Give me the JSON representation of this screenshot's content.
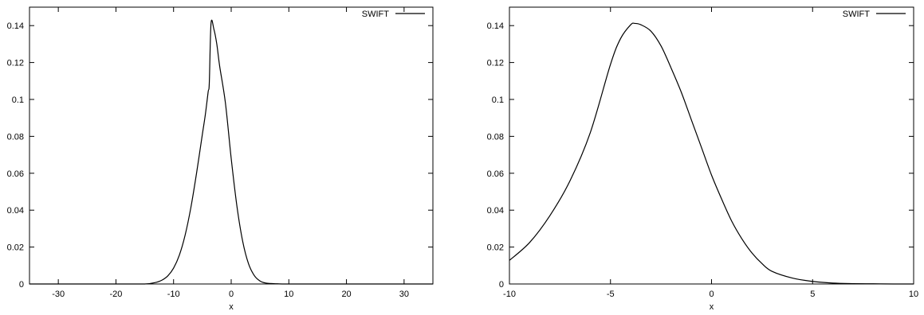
{
  "chart_data": [
    {
      "type": "line",
      "title": "",
      "xlabel": "x",
      "ylabel": "",
      "xlim": [
        -35,
        35
      ],
      "ylim": [
        0,
        0.15
      ],
      "xticks": [
        -30,
        -20,
        -10,
        0,
        10,
        20,
        30
      ],
      "xtick_labels": [
        "-30",
        "-20",
        "-10",
        "0",
        "10",
        "20",
        "30"
      ],
      "yticks": [
        0,
        0.02,
        0.04,
        0.06,
        0.08,
        0.1,
        0.12,
        0.14
      ],
      "ytick_labels": [
        "0",
        "0.02",
        "0.04",
        "0.06",
        "0.08",
        "0.1",
        "0.12",
        "0.14"
      ],
      "grid": false,
      "legend": "top-right",
      "series": [
        {
          "name": "SWIFT",
          "color": "#000000",
          "x": [
            -35,
            -20,
            -15,
            -13,
            -12,
            -11,
            -10,
            -9,
            -8,
            -7,
            -6,
            -5,
            -4.5,
            -4,
            -3.8,
            -3.5,
            -3,
            -2.5,
            -2,
            -1,
            0,
            1,
            2,
            3,
            4,
            5,
            6,
            8,
            10,
            20,
            35
          ],
          "y": [
            0,
            0,
            0,
            0.0009,
            0.0021,
            0.0044,
            0.0086,
            0.0156,
            0.0264,
            0.0414,
            0.0603,
            0.0812,
            0.0915,
            0.1041,
            0.109,
            0.1412,
            0.138,
            0.13,
            0.118,
            0.098,
            0.068,
            0.042,
            0.023,
            0.011,
            0.0046,
            0.0016,
            0.0005,
            0.0001,
            0,
            0,
            0
          ]
        }
      ]
    },
    {
      "type": "line",
      "title": "",
      "xlabel": "x",
      "ylabel": "",
      "xlim": [
        -10,
        10
      ],
      "ylim": [
        0,
        0.15
      ],
      "xticks": [
        -10,
        -5,
        0,
        5,
        10
      ],
      "xtick_labels": [
        "-10",
        "-5",
        "0",
        "5",
        "10"
      ],
      "yticks": [
        0,
        0.02,
        0.04,
        0.06,
        0.08,
        0.1,
        0.12,
        0.14
      ],
      "ytick_labels": [
        "0",
        "0.02",
        "0.04",
        "0.06",
        "0.08",
        "0.1",
        "0.12",
        "0.14"
      ],
      "grid": false,
      "legend": "top-right",
      "series": [
        {
          "name": "SWIFT",
          "color": "#000000",
          "x": [
            -10,
            -9,
            -8,
            -7,
            -6,
            -5,
            -4.5,
            -4,
            -3.8,
            -3.5,
            -3,
            -2.5,
            -2,
            -1.5,
            -1,
            -0.5,
            0,
            0.5,
            1,
            1.5,
            2,
            2.5,
            3,
            4,
            5,
            6,
            7,
            8,
            9,
            10
          ],
          "y": [
            0.0128,
            0.0225,
            0.037,
            0.056,
            0.082,
            0.119,
            0.133,
            0.1405,
            0.1412,
            0.1405,
            0.137,
            0.129,
            0.117,
            0.104,
            0.089,
            0.074,
            0.059,
            0.046,
            0.034,
            0.0245,
            0.0168,
            0.011,
            0.0068,
            0.0032,
            0.0014,
            0.0005,
            0.0002,
            0.0001,
            0,
            0
          ]
        }
      ]
    }
  ]
}
